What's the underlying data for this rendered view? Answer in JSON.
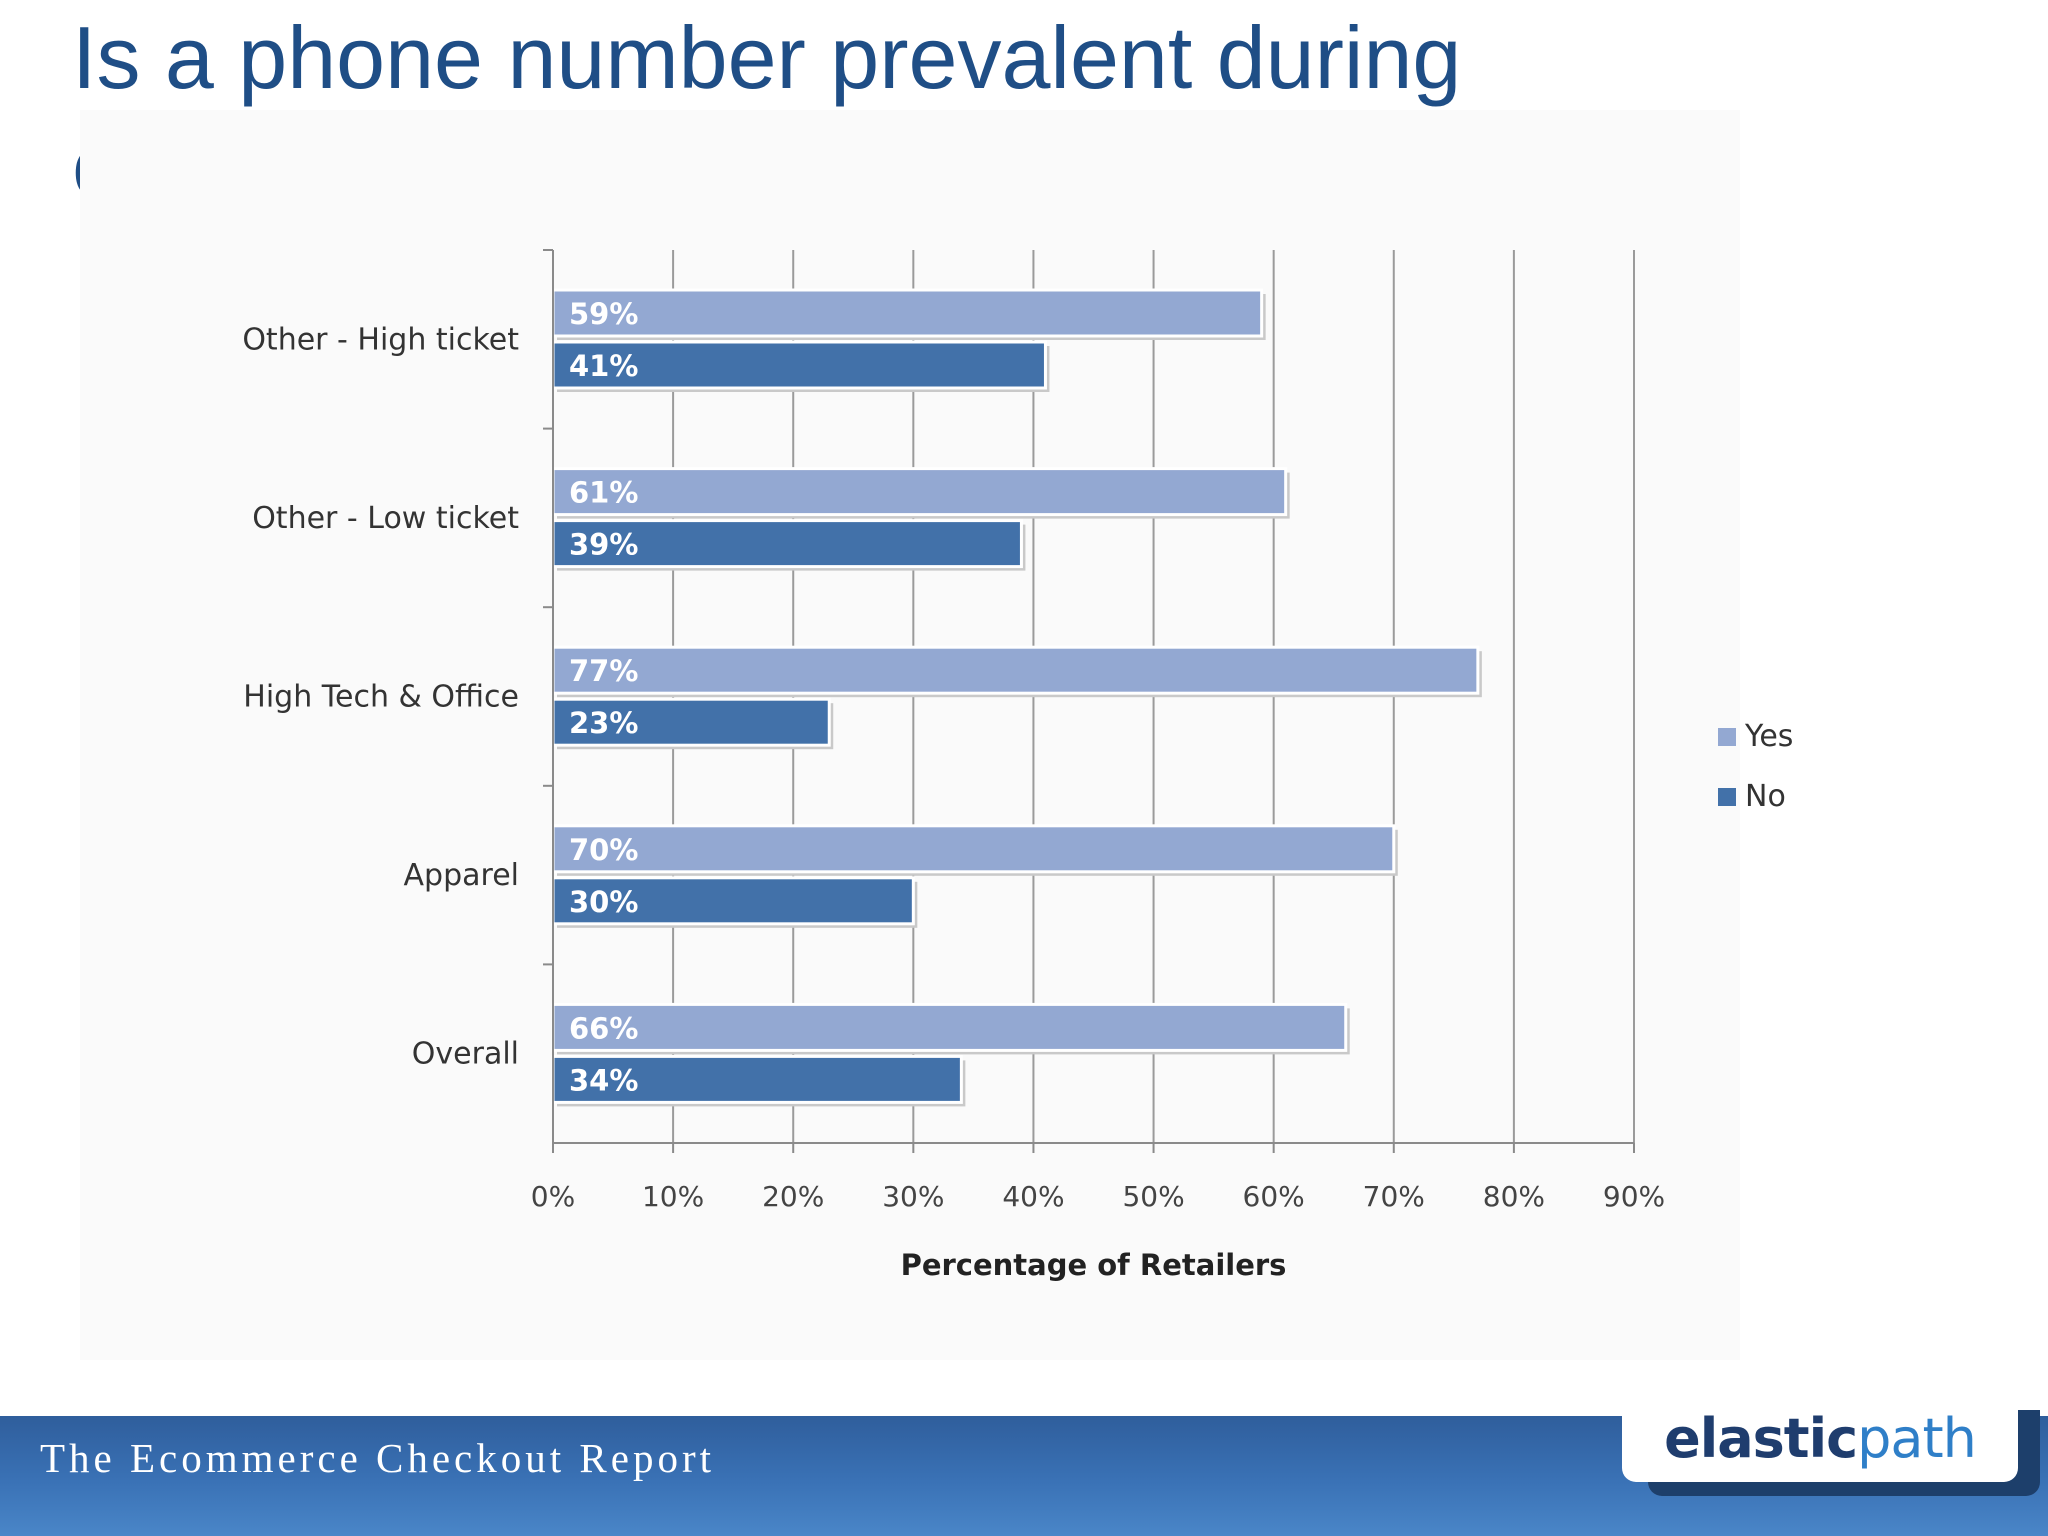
{
  "slide": {
    "title": "Is a phone number prevalent during checkout?"
  },
  "footer": {
    "report_title": "The Ecommerce Checkout Report",
    "logo_part1": "elastic",
    "logo_part2": "path"
  },
  "colors": {
    "title": "#1f4e86",
    "yes_bar": "#93a8d2",
    "no_bar": "#4271a9",
    "footer": "#3a72b6",
    "logo_dark": "#1f3d6e",
    "logo_light": "#2f7fc8"
  },
  "chart_data": {
    "type": "bar",
    "orientation": "horizontal",
    "categories": [
      "Other - High ticket",
      "Other - Low ticket",
      "High Tech & Office",
      "Apparel",
      "Overall"
    ],
    "series": [
      {
        "name": "Yes",
        "values": [
          59,
          61,
          77,
          70,
          66
        ],
        "labels": [
          "59%",
          "61%",
          "77%",
          "70%",
          "66%"
        ],
        "color": "#93a8d2"
      },
      {
        "name": "No",
        "values": [
          41,
          39,
          23,
          30,
          34
        ],
        "labels": [
          "41%",
          "39%",
          "23%",
          "30%",
          "34%"
        ],
        "color": "#4271a9"
      }
    ],
    "title": "",
    "xlabel": "Percentage of Retailers",
    "ylabel": "",
    "xlim": [
      0,
      90
    ],
    "x_ticks": [
      0,
      10,
      20,
      30,
      40,
      50,
      60,
      70,
      80,
      90
    ],
    "x_tick_labels": [
      "0%",
      "10%",
      "20%",
      "30%",
      "40%",
      "50%",
      "60%",
      "70%",
      "80%",
      "90%"
    ],
    "grid": true,
    "legend": "right"
  }
}
